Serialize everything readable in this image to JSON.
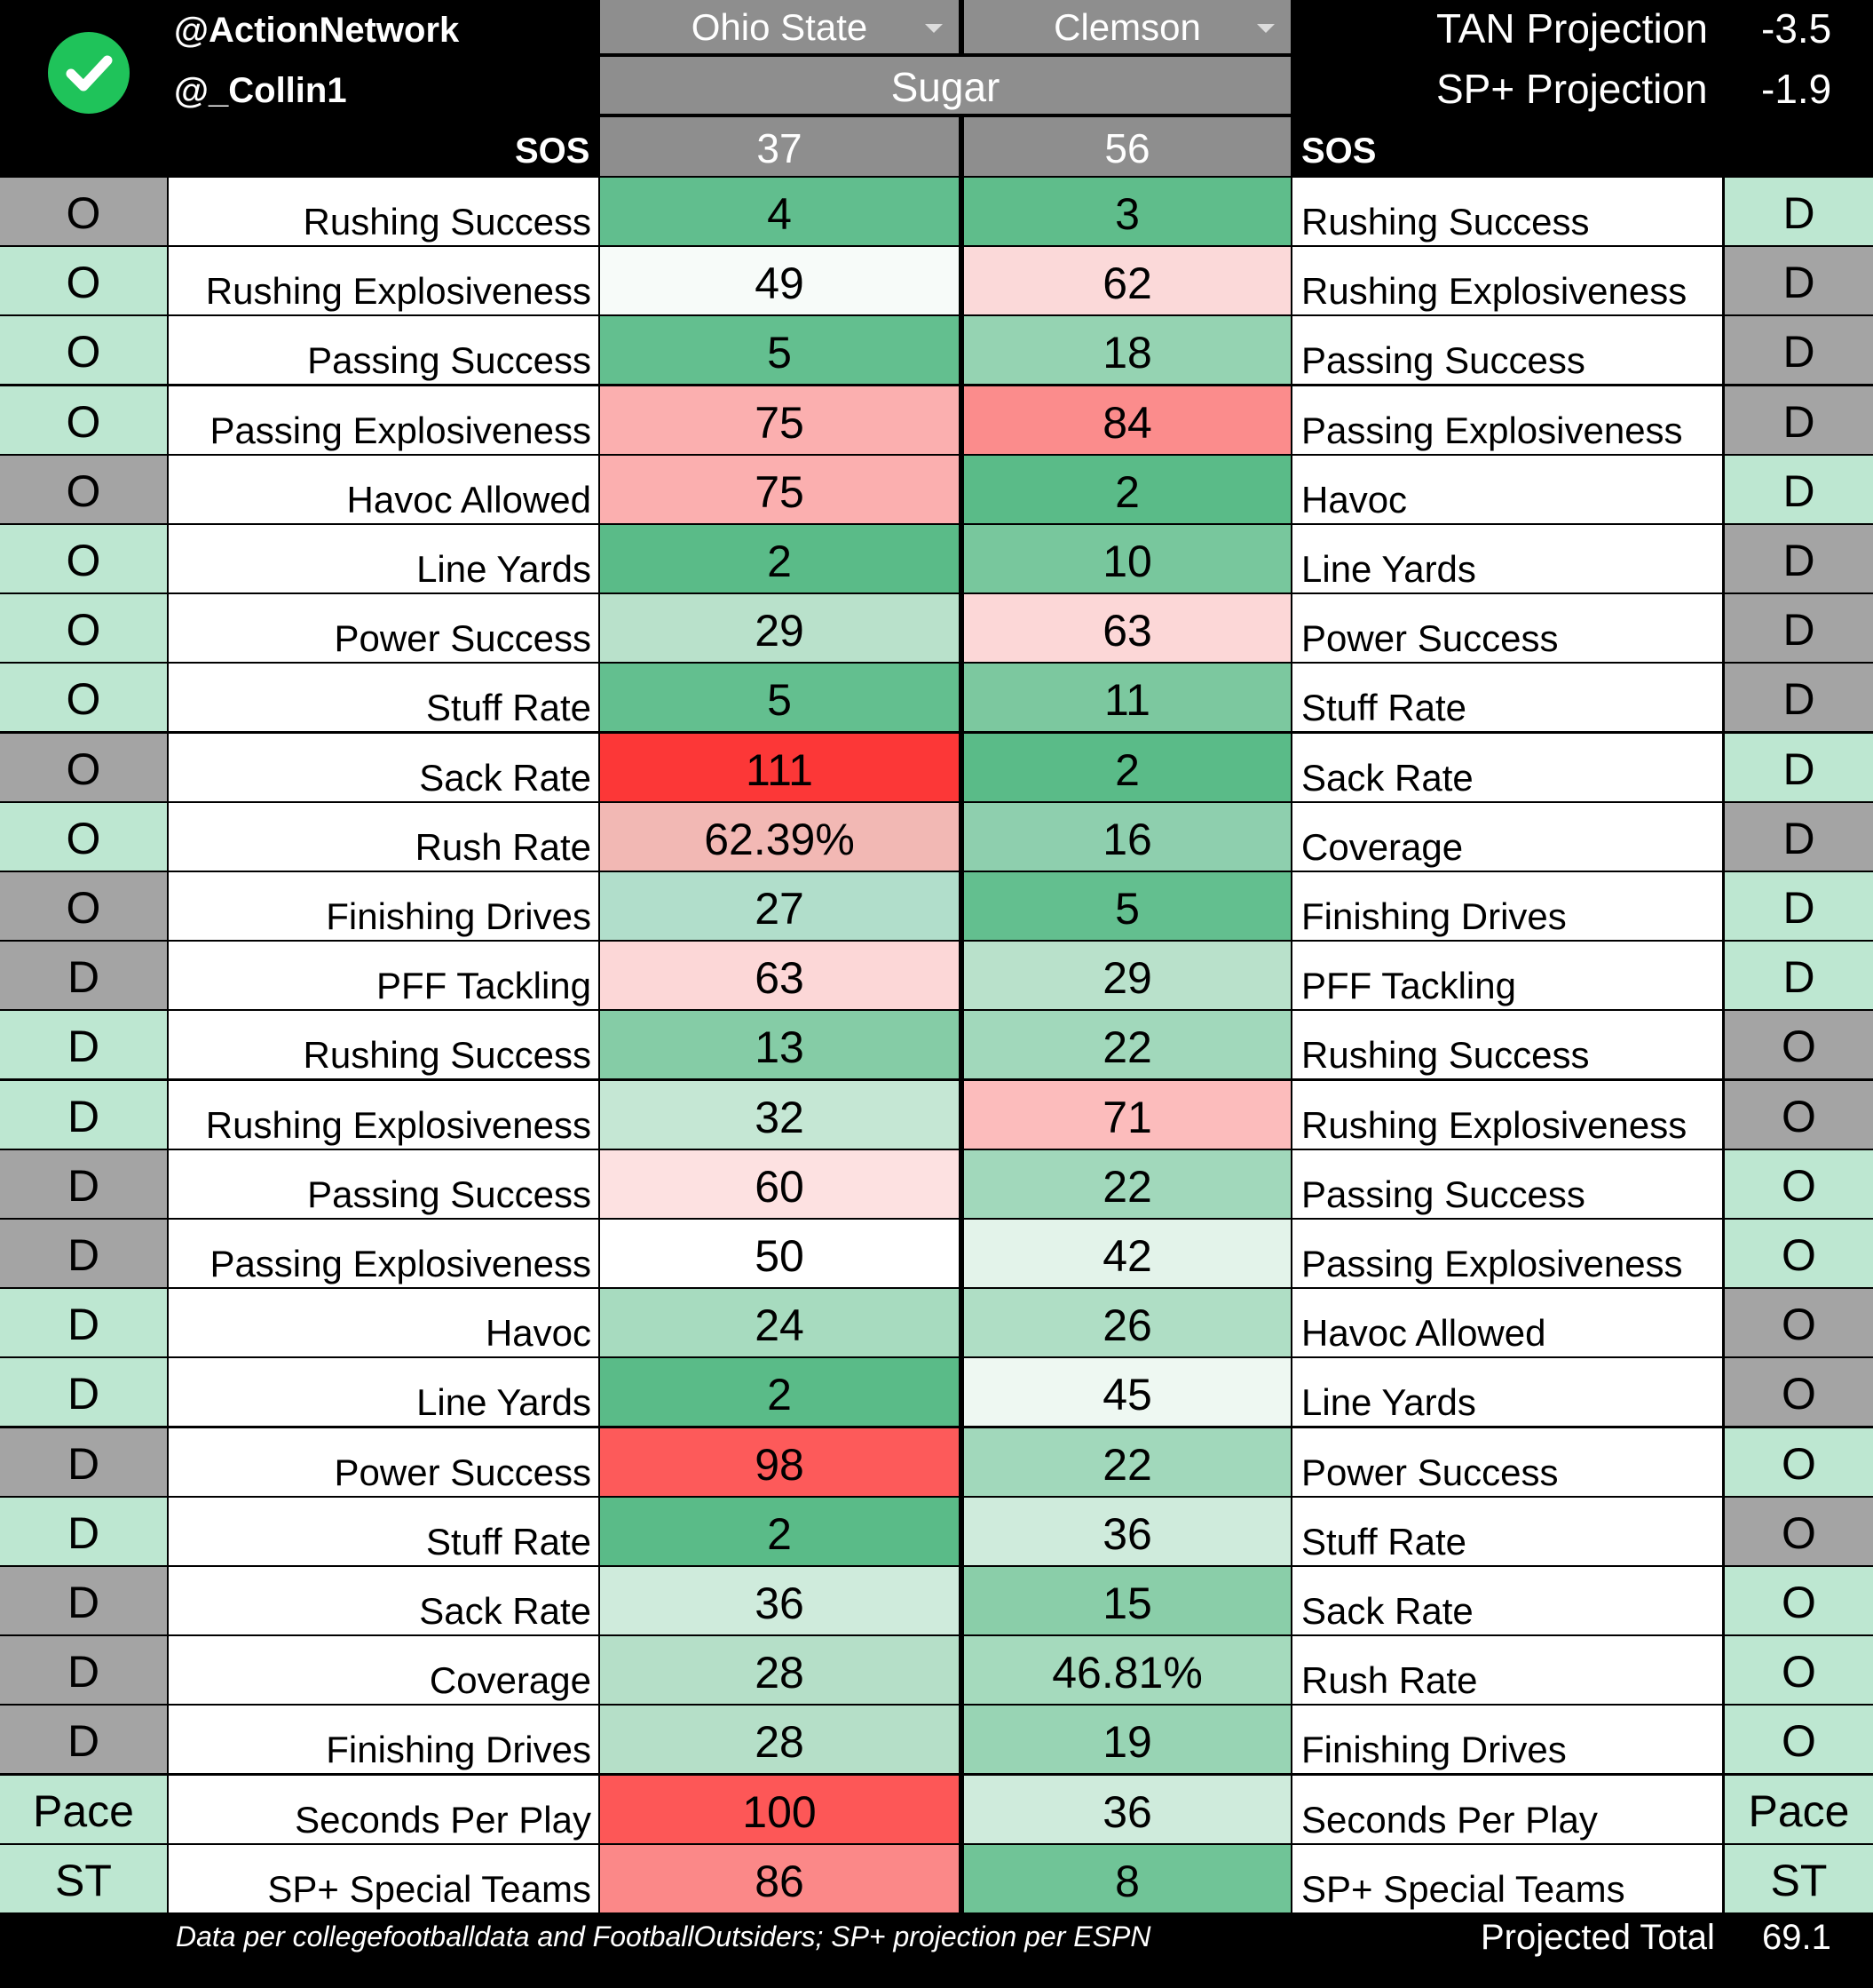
{
  "header": {
    "handle1": "@ActionNetwork",
    "handle2": "@_Collin1",
    "team_left": "Ohio State",
    "team_right": "Clemson",
    "bowl": "Sugar",
    "sos_label": "SOS",
    "sos_left": "37",
    "sos_right": "56",
    "tan_label": "TAN Projection",
    "tan_value": "-3.5",
    "sp_label": "SP+ Projection",
    "sp_value": "-1.9"
  },
  "footer": {
    "note": "Data per collegefootballdata and FootballOutsiders; SP+ projection per ESPN",
    "total_label": "Projected Total",
    "total_value": "69.1"
  },
  "colors": {
    "gray_side": "#a4a4a4",
    "mint_side": "#bde7d1",
    "white": "#ffffff"
  },
  "rows": [
    {
      "lside": "O",
      "lside_bg": "#a4a4a4",
      "llabel": "Rushing Success",
      "lval": "4",
      "lval_bg": "#61be8e",
      "rval": "3",
      "rval_bg": "#5fbd8b",
      "rlabel": "Rushing Success",
      "rside": "D",
      "rside_bg": "#bde7d1"
    },
    {
      "lside": "O",
      "lside_bg": "#bde7d1",
      "llabel": "Rushing Explosiveness",
      "lval": "49",
      "lval_bg": "#f7fbf9",
      "rval": "62",
      "rval_bg": "#fbd9d9",
      "rlabel": "Rushing Explosiveness",
      "rside": "D",
      "rside_bg": "#a4a4a4"
    },
    {
      "lside": "O",
      "lside_bg": "#bde7d1",
      "llabel": "Passing Success",
      "lval": "5",
      "lval_bg": "#63bf8f",
      "rval": "18",
      "rval_bg": "#95d3b2",
      "rlabel": "Passing Success",
      "rside": "D",
      "rside_bg": "#a4a4a4"
    },
    {
      "lside": "O",
      "lside_bg": "#bde7d1",
      "llabel": "Passing Explosiveness",
      "lval": "75",
      "lval_bg": "#fbafaf",
      "rval": "84",
      "rval_bg": "#fb8c8c",
      "rlabel": "Passing Explosiveness",
      "rside": "D",
      "rside_bg": "#a4a4a4"
    },
    {
      "lside": "O",
      "lside_bg": "#a4a4a4",
      "llabel": "Havoc Allowed",
      "lval": "75",
      "lval_bg": "#fbafaf",
      "rval": "2",
      "rval_bg": "#5abb88",
      "rlabel": "Havoc",
      "rside": "D",
      "rside_bg": "#bde7d1"
    },
    {
      "lside": "O",
      "lside_bg": "#bde7d1",
      "llabel": "Line Yards",
      "lval": "2",
      "lval_bg": "#5abb88",
      "rval": "10",
      "rval_bg": "#78c79d",
      "rlabel": "Line Yards",
      "rside": "D",
      "rside_bg": "#a4a4a4"
    },
    {
      "lside": "O",
      "lside_bg": "#bde7d1",
      "llabel": "Power Success",
      "lval": "29",
      "lval_bg": "#b9e1cb",
      "rval": "63",
      "rval_bg": "#fcd7d7",
      "rlabel": "Power Success",
      "rside": "D",
      "rside_bg": "#a4a4a4"
    },
    {
      "lside": "O",
      "lside_bg": "#bde7d1",
      "llabel": "Stuff Rate",
      "lval": "5",
      "lval_bg": "#63bf8f",
      "rval": "11",
      "rval_bg": "#7cc89f",
      "rlabel": "Stuff Rate",
      "rside": "D",
      "rside_bg": "#a4a4a4"
    },
    {
      "lside": "O",
      "lside_bg": "#a4a4a4",
      "llabel": "Sack Rate",
      "lval": "111",
      "lval_bg": "#fc3737",
      "rval": "2",
      "rval_bg": "#5abb88",
      "rlabel": "Sack Rate",
      "rside": "D",
      "rside_bg": "#bde7d1"
    },
    {
      "lside": "O",
      "lside_bg": "#bde7d1",
      "llabel": "Rush Rate",
      "lval": "62.39%",
      "lval_bg": "#f2b8b4",
      "rval": "16",
      "rval_bg": "#8ecfae",
      "rlabel": "Coverage",
      "rside": "D",
      "rside_bg": "#a4a4a4"
    },
    {
      "lside": "O",
      "lside_bg": "#a4a4a4",
      "llabel": "Finishing Drives",
      "lval": "27",
      "lval_bg": "#b1decb",
      "rval": "5",
      "rval_bg": "#63bf8f",
      "rlabel": "Finishing Drives",
      "rside": "D",
      "rside_bg": "#bde7d1"
    },
    {
      "lside": "D",
      "lside_bg": "#a4a4a4",
      "llabel": "PFF Tackling",
      "lval": "63",
      "lval_bg": "#fcd7d7",
      "rval": "29",
      "rval_bg": "#b9e1cb",
      "rlabel": "PFF Tackling",
      "rside": "D",
      "rside_bg": "#bde7d1"
    },
    {
      "lside": "D",
      "lside_bg": "#bde7d1",
      "llabel": "Rushing Success",
      "lval": "13",
      "lval_bg": "#85cca6",
      "rval": "22",
      "rval_bg": "#a1d8bb",
      "rlabel": "Rushing Success",
      "rside": "O",
      "rside_bg": "#a4a4a4"
    },
    {
      "lside": "D",
      "lside_bg": "#bde7d1",
      "llabel": "Rushing Explosiveness",
      "lval": "32",
      "lval_bg": "#c5e7d4",
      "rval": "71",
      "rval_bg": "#fcbcbc",
      "rlabel": "Rushing Explosiveness",
      "rside": "O",
      "rside_bg": "#a4a4a4"
    },
    {
      "lside": "D",
      "lside_bg": "#a4a4a4",
      "llabel": "Passing Success",
      "lval": "60",
      "lval_bg": "#fde1e1",
      "rval": "22",
      "rval_bg": "#a1d8bb",
      "rlabel": "Passing Success",
      "rside": "O",
      "rside_bg": "#bde7d1"
    },
    {
      "lside": "D",
      "lside_bg": "#a4a4a4",
      "llabel": "Passing Explosiveness",
      "lval": "50",
      "lval_bg": "#ffffff",
      "rval": "42",
      "rval_bg": "#e3f3ea",
      "rlabel": "Passing Explosiveness",
      "rside": "O",
      "rside_bg": "#bde7d1"
    },
    {
      "lside": "D",
      "lside_bg": "#bde7d1",
      "llabel": "Havoc",
      "lval": "24",
      "lval_bg": "#a7dbbf",
      "rval": "26",
      "rval_bg": "#afdec5",
      "rlabel": "Havoc Allowed",
      "rside": "O",
      "rside_bg": "#a4a4a4"
    },
    {
      "lside": "D",
      "lside_bg": "#bde7d1",
      "llabel": "Line Yards",
      "lval": "2",
      "lval_bg": "#5abb88",
      "rval": "45",
      "rval_bg": "#eef8f2",
      "rlabel": "Line Yards",
      "rside": "O",
      "rside_bg": "#a4a4a4"
    },
    {
      "lside": "D",
      "lside_bg": "#a4a4a4",
      "llabel": "Power Success",
      "lval": "98",
      "lval_bg": "#fd5a5a",
      "rval": "22",
      "rval_bg": "#a1d8bb",
      "rlabel": "Power Success",
      "rside": "O",
      "rside_bg": "#bde7d1"
    },
    {
      "lside": "D",
      "lside_bg": "#bde7d1",
      "llabel": "Stuff Rate",
      "lval": "2",
      "lval_bg": "#5abb88",
      "rval": "36",
      "rval_bg": "#cfebdc",
      "rlabel": "Stuff Rate",
      "rside": "O",
      "rside_bg": "#a4a4a4"
    },
    {
      "lside": "D",
      "lside_bg": "#a4a4a4",
      "llabel": "Sack Rate",
      "lval": "36",
      "lval_bg": "#cfebdc",
      "rval": "15",
      "rval_bg": "#8ace a9",
      "rlabel": "Sack Rate",
      "rside": "O",
      "rside_bg": "#bde7d1"
    },
    {
      "lside": "D",
      "lside_bg": "#a4a4a4",
      "llabel": "Coverage",
      "lval": "28",
      "lval_bg": "#b5dfc8",
      "rval": "46.81%",
      "rval_bg": "#a5dabd",
      "rlabel": "Rush Rate",
      "rside": "O",
      "rside_bg": "#bde7d1"
    },
    {
      "lside": "D",
      "lside_bg": "#a4a4a4",
      "llabel": "Finishing Drives",
      "lval": "28",
      "lval_bg": "#b5dfc8",
      "rval": "19",
      "rval_bg": "#98d4b4",
      "rlabel": "Finishing Drives",
      "rside": "O",
      "rside_bg": "#bde7d1"
    },
    {
      "lside": "Pace",
      "lside_bg": "#bde7d1",
      "llabel": "Seconds Per Play",
      "lval": "100",
      "lval_bg": "#fd5757",
      "rval": "36",
      "rval_bg": "#cfebdc",
      "rlabel": "Seconds Per Play",
      "rside": "Pace",
      "rside_bg": "#bde7d1"
    },
    {
      "lside": "ST",
      "lside_bg": "#bde7d1",
      "llabel": "SP+ Special Teams",
      "lval": "86",
      "lval_bg": "#fb8888",
      "rval": "8",
      "rval_bg": "#70c497",
      "rlabel": "SP+ Special Teams",
      "rside": "ST",
      "rside_bg": "#bde7d1"
    }
  ]
}
